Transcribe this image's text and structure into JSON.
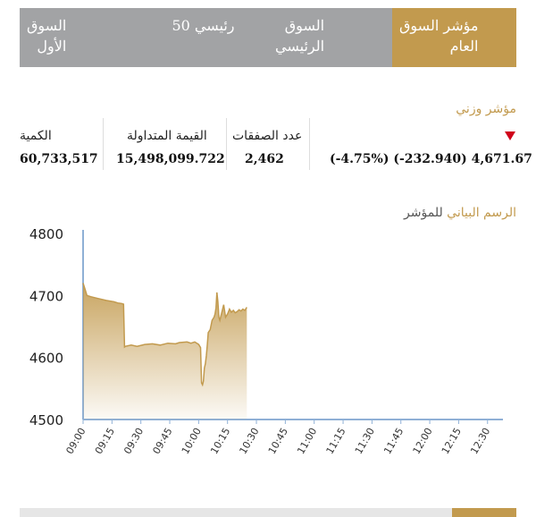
{
  "tabs": [
    {
      "lines": [
        "السوق",
        "الأول"
      ],
      "active": false,
      "name": "tab-first-market"
    },
    {
      "lines": [
        "رئيسي 50"
      ],
      "active": false,
      "name": "tab-main-50"
    },
    {
      "lines": [
        "السوق",
        "الرئيسي"
      ],
      "active": false,
      "name": "tab-main-market"
    },
    {
      "lines": [
        "مؤشر السوق",
        "العام"
      ],
      "active": true,
      "name": "tab-general-index"
    }
  ],
  "index": {
    "title": "مؤشر وزني",
    "direction": "down",
    "value": "4,671.67",
    "change": "(-232.940)",
    "change_pct": "(-4.75%)",
    "deals_label": "عدد الصفقات",
    "deals_value": "2,462",
    "traded_value_label": "القيمة المتداولة",
    "traded_value": "15,498,099.722",
    "volume_label": "الكمية",
    "volume_value": "60,733,517"
  },
  "chart_title_gold": "الرسم البياني",
  "chart_title_rest": "للمؤشر",
  "colors": {
    "accent": "#c29a4e",
    "tab_bg": "#a2a3a5",
    "down": "#d0021b"
  },
  "chart_data": {
    "type": "area",
    "ylim": [
      4500,
      4800
    ],
    "yticks": [
      4500,
      4600,
      4700,
      4800
    ],
    "xticks": [
      "09:00",
      "09:15",
      "09:30",
      "09:45",
      "10:00",
      "10:15",
      "10:30",
      "10:45",
      "11:00",
      "11:15",
      "11:30",
      "11:45",
      "12:00",
      "12:15",
      "12:30"
    ],
    "xlim_minutes": [
      540,
      758
    ],
    "series": [
      {
        "x": [
          540,
          541,
          542,
          544,
          548,
          552,
          556,
          558,
          560,
          561,
          561.5,
          562,
          565,
          568,
          572,
          576,
          580,
          584,
          588,
          590,
          594,
          596,
          598,
          600,
          601,
          601.5,
          602,
          602.5,
          603,
          603.5,
          604,
          604.5,
          605,
          606,
          607,
          608,
          608.5,
          609,
          609.5,
          610,
          610.5,
          611,
          612,
          613,
          614,
          615,
          616,
          617,
          618,
          619,
          620,
          621,
          622,
          623,
          624,
          625
        ],
        "y": [
          4720,
          4710,
          4700,
          4698,
          4695,
          4692,
          4690,
          4688,
          4687,
          4686,
          4617,
          4618,
          4620,
          4618,
          4621,
          4622,
          4620,
          4623,
          4622,
          4624,
          4625,
          4623,
          4625,
          4621,
          4616,
          4559,
          4556,
          4562,
          4583,
          4590,
          4603,
          4621,
          4640,
          4645,
          4660,
          4665,
          4670,
          4680,
          4705,
          4690,
          4665,
          4660,
          4672,
          4685,
          4665,
          4670,
          4678,
          4673,
          4676,
          4672,
          4674,
          4677,
          4675,
          4678,
          4676,
          4681
        ]
      }
    ]
  }
}
